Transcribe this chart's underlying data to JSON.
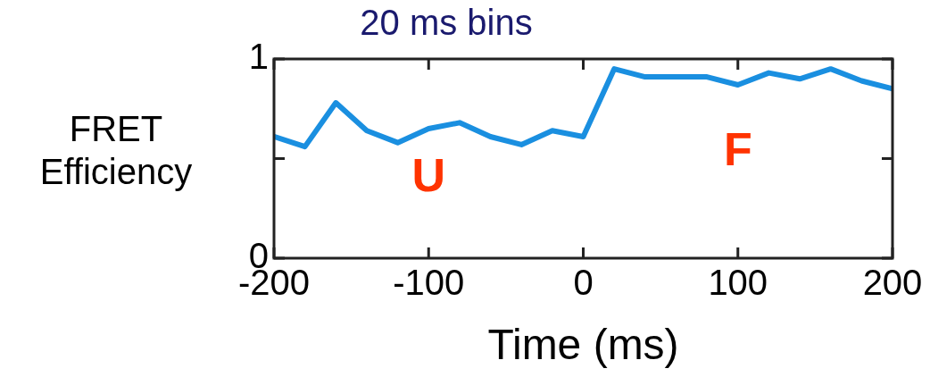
{
  "chart_data": {
    "type": "line",
    "title": "20 ms bins",
    "xlabel": "Time (ms)",
    "ylabel": "FRET Efficiency",
    "x": [
      -200,
      -180,
      -160,
      -140,
      -120,
      -100,
      -80,
      -60,
      -40,
      -20,
      0,
      20,
      40,
      60,
      80,
      100,
      120,
      140,
      160,
      180,
      200
    ],
    "series": [
      {
        "color": "#1a8fe0",
        "values": [
          0.61,
          0.56,
          0.78,
          0.64,
          0.58,
          0.65,
          0.68,
          0.61,
          0.57,
          0.64,
          0.61,
          0.95,
          0.91,
          0.91,
          0.91,
          0.87,
          0.93,
          0.9,
          0.95,
          0.89,
          0.85
        ]
      }
    ],
    "xlim": [
      -200,
      200
    ],
    "xticks": [
      -200,
      -100,
      0,
      100,
      200
    ],
    "ylim": [
      0,
      1
    ],
    "yticks": [
      0,
      {
        "value": 0.5,
        "label": null
      },
      1
    ],
    "annotations": [
      "U",
      "F"
    ],
    "grid": false,
    "legend": false,
    "marker": "none",
    "line_style": "solid"
  }
}
